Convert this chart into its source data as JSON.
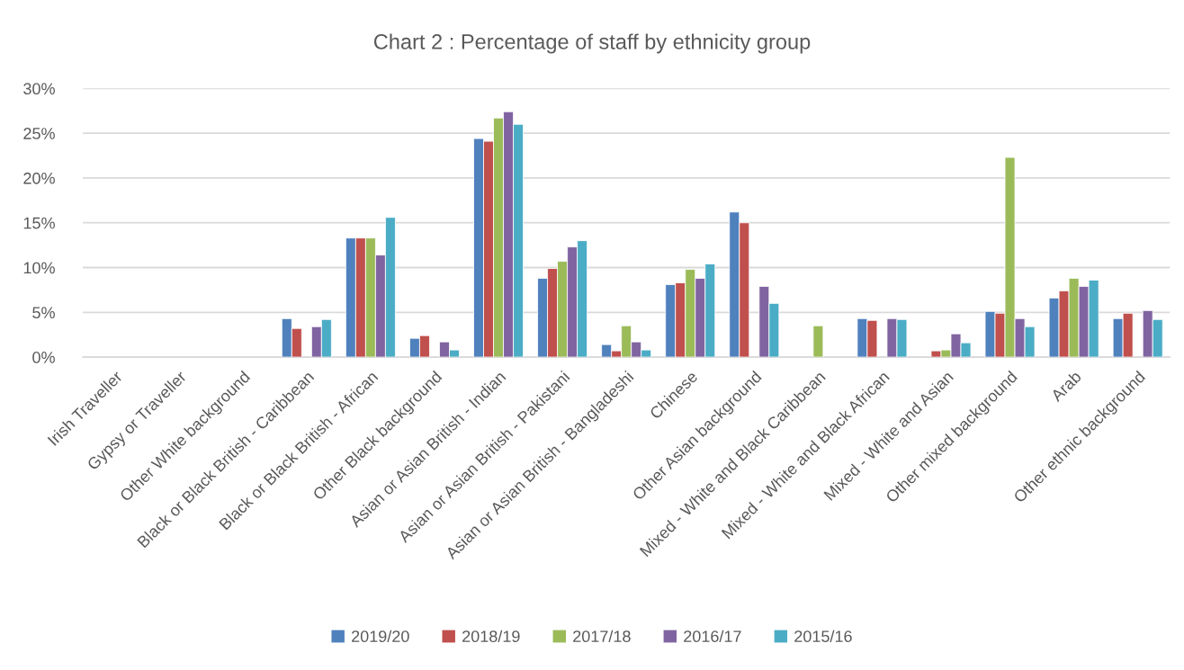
{
  "chart_data": {
    "type": "bar",
    "title": "Chart 2 : Percentage of staff by ethnicity group",
    "categories": [
      "Irish Traveller",
      "Gypsy or Traveller",
      "Other White background",
      "Black or Black British - Caribbean",
      "Black or Black British - African",
      "Other Black background",
      "Asian or Asian British - Indian",
      "Asian or Asian British - Pakistani",
      "Asian or Asian British - Bangladeshi",
      "Chinese",
      "Other Asian background",
      "Mixed - White and Black Caribbean",
      "Mixed - White and Black African",
      "Mixed - White and Asian",
      "Other mixed background",
      "Arab",
      "Other ethnic background"
    ],
    "series": [
      {
        "name": "2019/20",
        "color": "#4f81bd",
        "values": [
          null,
          null,
          null,
          4.3,
          13.3,
          2.1,
          24.4,
          8.8,
          1.4,
          8.1,
          16.2,
          null,
          4.3,
          null,
          5.1,
          6.6,
          4.3
        ]
      },
      {
        "name": "2018/19",
        "color": "#c0504d",
        "values": [
          null,
          null,
          null,
          3.2,
          13.3,
          2.4,
          24.1,
          9.9,
          0.7,
          8.3,
          15.0,
          null,
          4.1,
          0.7,
          4.9,
          7.4,
          4.9
        ]
      },
      {
        "name": "2017/18",
        "color": "#9bbb59",
        "values": [
          null,
          null,
          null,
          null,
          13.3,
          null,
          26.7,
          10.7,
          3.5,
          9.8,
          null,
          3.5,
          null,
          0.8,
          22.3,
          8.8,
          null
        ]
      },
      {
        "name": "2016/17",
        "color": "#8064a2",
        "values": [
          null,
          null,
          null,
          3.4,
          11.4,
          1.7,
          27.4,
          12.3,
          1.7,
          8.8,
          7.9,
          null,
          4.3,
          2.6,
          4.3,
          7.9,
          5.2
        ]
      },
      {
        "name": "2015/16",
        "color": "#4bacc6",
        "values": [
          null,
          null,
          null,
          4.2,
          15.6,
          0.8,
          26.0,
          13.0,
          0.8,
          10.4,
          6.0,
          null,
          4.2,
          1.6,
          3.4,
          8.6,
          4.2
        ]
      }
    ],
    "ylim": [
      0,
      30
    ],
    "yticks": [
      {
        "value": 0,
        "label": "0%"
      },
      {
        "value": 5,
        "label": "5%"
      },
      {
        "value": 10,
        "label": "10%"
      },
      {
        "value": 15,
        "label": "15%"
      },
      {
        "value": 20,
        "label": "20%"
      },
      {
        "value": 25,
        "label": "25%"
      },
      {
        "value": 30,
        "label": "30%"
      }
    ],
    "grid": "y",
    "legend": "bottom"
  }
}
